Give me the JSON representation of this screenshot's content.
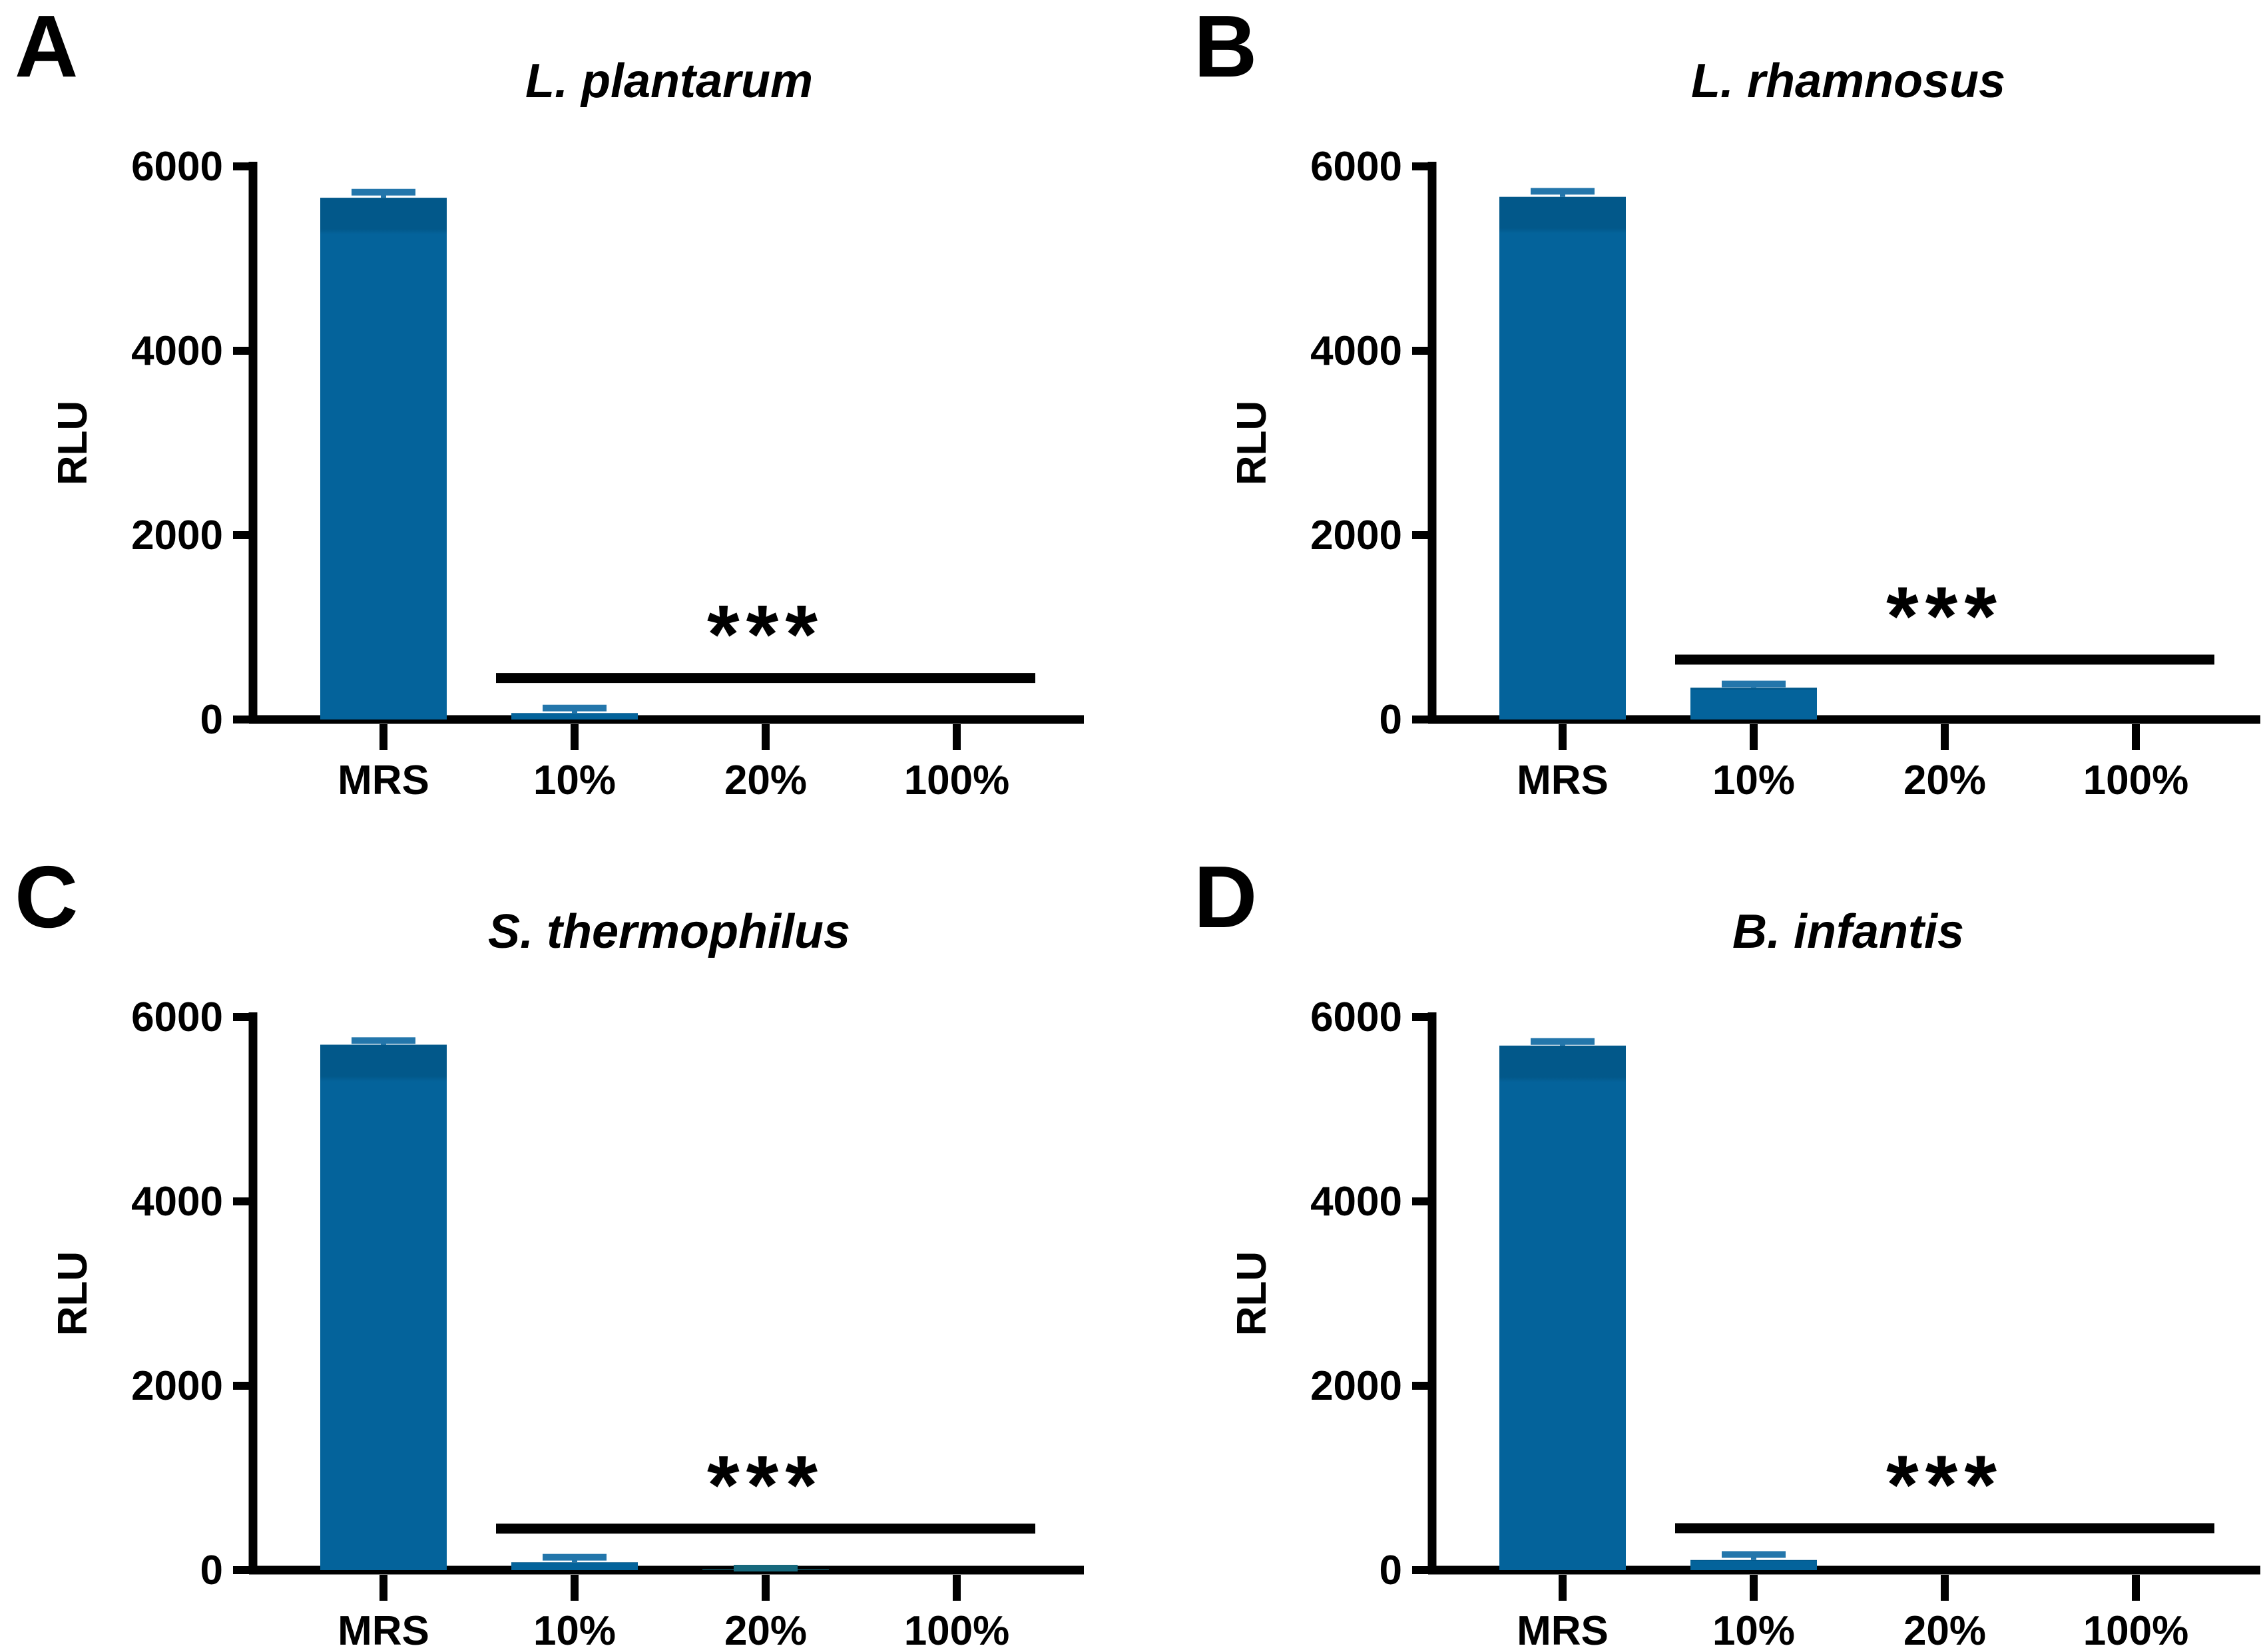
{
  "figure": {
    "background": "#ffffff",
    "default_bar_color": "#04639b",
    "bar_top_shade": "#02588a",
    "error_bar_color": "#2376ab",
    "axis_color": "#000000",
    "text_color": "#000000",
    "ylabel": "RLU",
    "ylim": [
      0,
      6000
    ],
    "yticks": [
      0,
      2000,
      4000,
      6000
    ],
    "categories": [
      "MRS",
      "10%",
      "20%",
      "100%"
    ],
    "significance_label": "***"
  },
  "chart_data": [
    {
      "panel_label": "A",
      "type": "bar",
      "title": "L. plantarum",
      "ylabel": "RLU",
      "xlabel": "",
      "categories": [
        "MRS",
        "10%",
        "20%",
        "100%"
      ],
      "values": [
        5660,
        70,
        0,
        0
      ],
      "errors": [
        60,
        55,
        0,
        0
      ],
      "bar_colors": [
        "#04639b",
        "#04639b",
        "#04639b",
        "#04639b"
      ],
      "ylim": [
        0,
        6000
      ],
      "yticks": [
        0,
        2000,
        4000,
        6000
      ],
      "grid": false,
      "significance": {
        "label": "***",
        "from": "10%",
        "to": "100%",
        "y": 450
      }
    },
    {
      "panel_label": "B",
      "type": "bar",
      "title": "L. rhamnosus",
      "ylabel": "RLU",
      "xlabel": "",
      "categories": [
        "MRS",
        "10%",
        "20%",
        "100%"
      ],
      "values": [
        5670,
        345,
        0,
        0
      ],
      "errors": [
        60,
        40,
        0,
        0
      ],
      "bar_colors": [
        "#04639b",
        "#04639b",
        "#04639b",
        "#04639b"
      ],
      "ylim": [
        0,
        6000
      ],
      "yticks": [
        0,
        2000,
        4000,
        6000
      ],
      "grid": false,
      "significance": {
        "label": "***",
        "from": "10%",
        "to": "100%",
        "y": 650
      }
    },
    {
      "panel_label": "C",
      "type": "bar",
      "title": "S. thermophilus",
      "ylabel": "RLU",
      "xlabel": "",
      "categories": [
        "MRS",
        "10%",
        "20%",
        "100%"
      ],
      "values": [
        5700,
        85,
        8,
        0
      ],
      "errors": [
        45,
        55,
        14,
        0
      ],
      "bar_colors": [
        "#04639b",
        "#04639b",
        "#17697d",
        "#04639b"
      ],
      "ylim": [
        0,
        6000
      ],
      "yticks": [
        0,
        2000,
        4000,
        6000
      ],
      "grid": false,
      "significance": {
        "label": "***",
        "from": "10%",
        "to": "100%",
        "y": 450
      }
    },
    {
      "panel_label": "D",
      "type": "bar",
      "title": "B. infantis",
      "ylabel": "RLU",
      "xlabel": "",
      "categories": [
        "MRS",
        "10%",
        "20%",
        "100%"
      ],
      "values": [
        5690,
        110,
        0,
        0
      ],
      "errors": [
        45,
        60,
        0,
        0
      ],
      "bar_colors": [
        "#04639b",
        "#04639b",
        "#04639b",
        "#04639b"
      ],
      "ylim": [
        0,
        6000
      ],
      "yticks": [
        0,
        2000,
        4000,
        6000
      ],
      "grid": false,
      "significance": {
        "label": "***",
        "from": "10%",
        "to": "100%",
        "y": 455
      }
    }
  ]
}
